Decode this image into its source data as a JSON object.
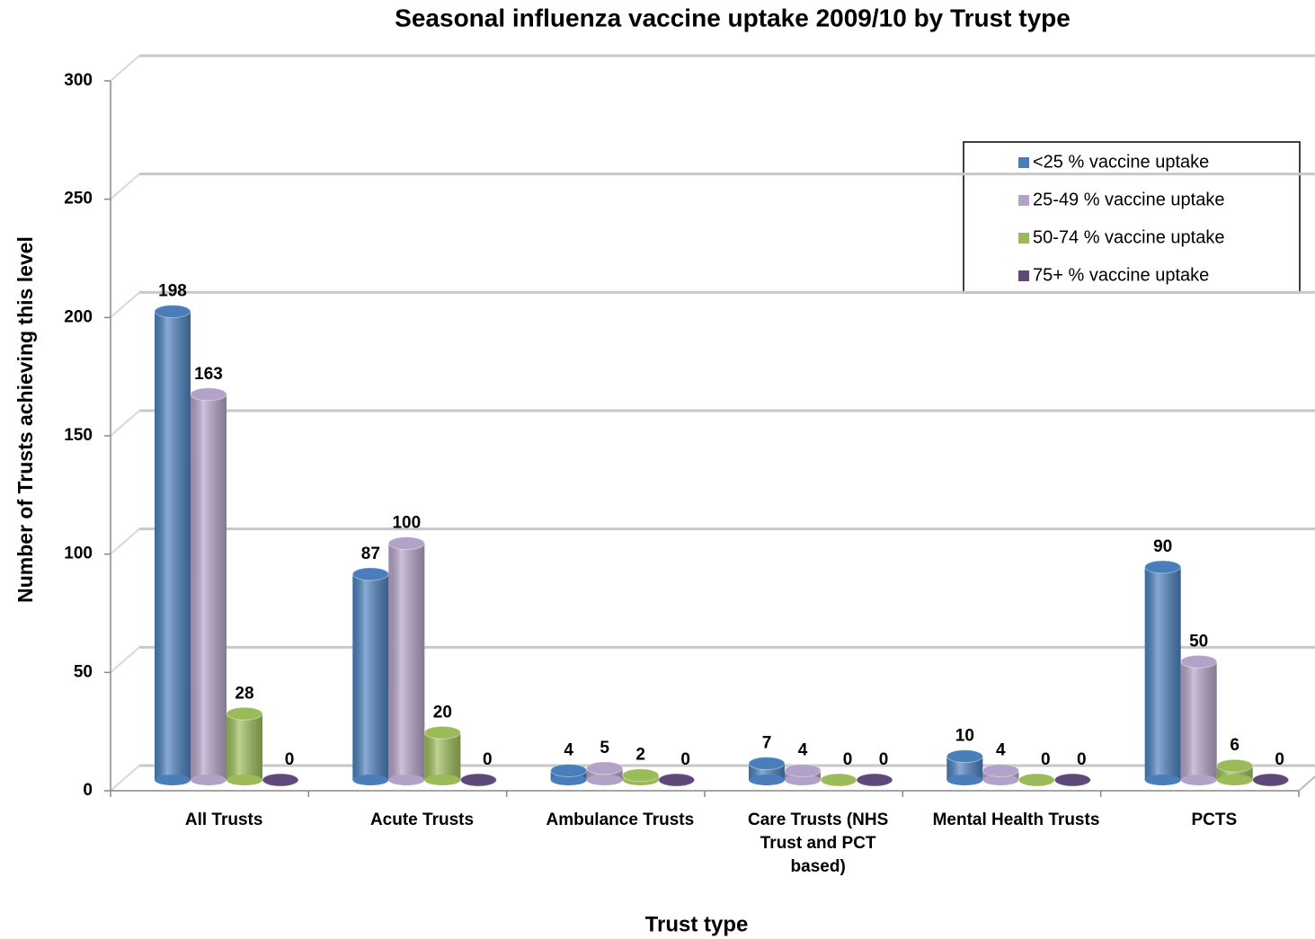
{
  "chart_data": {
    "type": "bar",
    "title": "Seasonal influenza vaccine uptake 2009/10  by Trust type",
    "x_label": "Trust type",
    "y_label": "Number of Trusts achieving this level",
    "categories": [
      "All Trusts",
      "Acute  Trusts",
      "Ambulance Trusts",
      "Care Trusts (NHS Trust and PCT based)",
      "Mental Health Trusts",
      "PCTS"
    ],
    "series": [
      {
        "name": "<25 % vaccine uptake",
        "color": "#4a7ebb",
        "values": [
          198,
          87,
          4,
          7,
          10,
          90
        ]
      },
      {
        "name": "25-49 % vaccine uptake",
        "color": "#b3a2c7",
        "values": [
          163,
          100,
          5,
          4,
          4,
          50
        ]
      },
      {
        "name": "50-74 % vaccine uptake",
        "color": "#9bbb59",
        "values": [
          28,
          20,
          2,
          0,
          0,
          6
        ]
      },
      {
        "name": "75+ % vaccine uptake",
        "color": "#5f497a",
        "values": [
          0,
          0,
          0,
          0,
          0,
          0
        ]
      }
    ],
    "ylim": [
      0,
      300
    ],
    "yticks": [
      0,
      50,
      100,
      150,
      200,
      250,
      300
    ],
    "grid": true,
    "legend": "upper right"
  }
}
